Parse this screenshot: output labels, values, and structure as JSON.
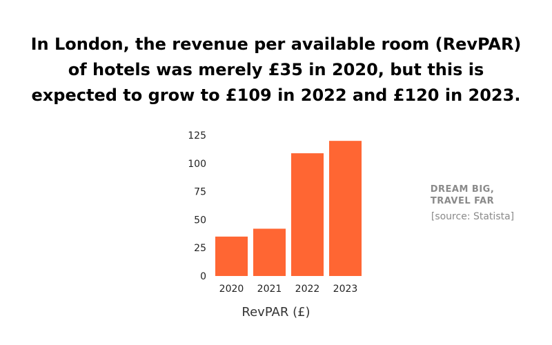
{
  "headline": {
    "lines": [
      "In London, the revenue per available room (RevPAR)",
      "of hotels was merely £35 in 2020, but this is",
      "expected to grow to £109 in 2022 and £120 in 2023."
    ]
  },
  "brand": {
    "lines": [
      "DREAM BIG,",
      "TRAVEL FAR"
    ]
  },
  "source": "[source: Statista]",
  "colors": {
    "bar": "#ff6633",
    "axis_text": "#222222",
    "side_text": "#8a8a8a"
  },
  "chart_data": {
    "type": "bar",
    "categories": [
      "2020",
      "2021",
      "2022",
      "2023"
    ],
    "values": [
      35,
      42,
      109,
      120
    ],
    "xlabel": "RevPAR (£)",
    "ylabel": "",
    "ylim": [
      0,
      125
    ],
    "yticks": [
      0,
      25,
      50,
      75,
      100,
      125
    ],
    "grid": false
  }
}
